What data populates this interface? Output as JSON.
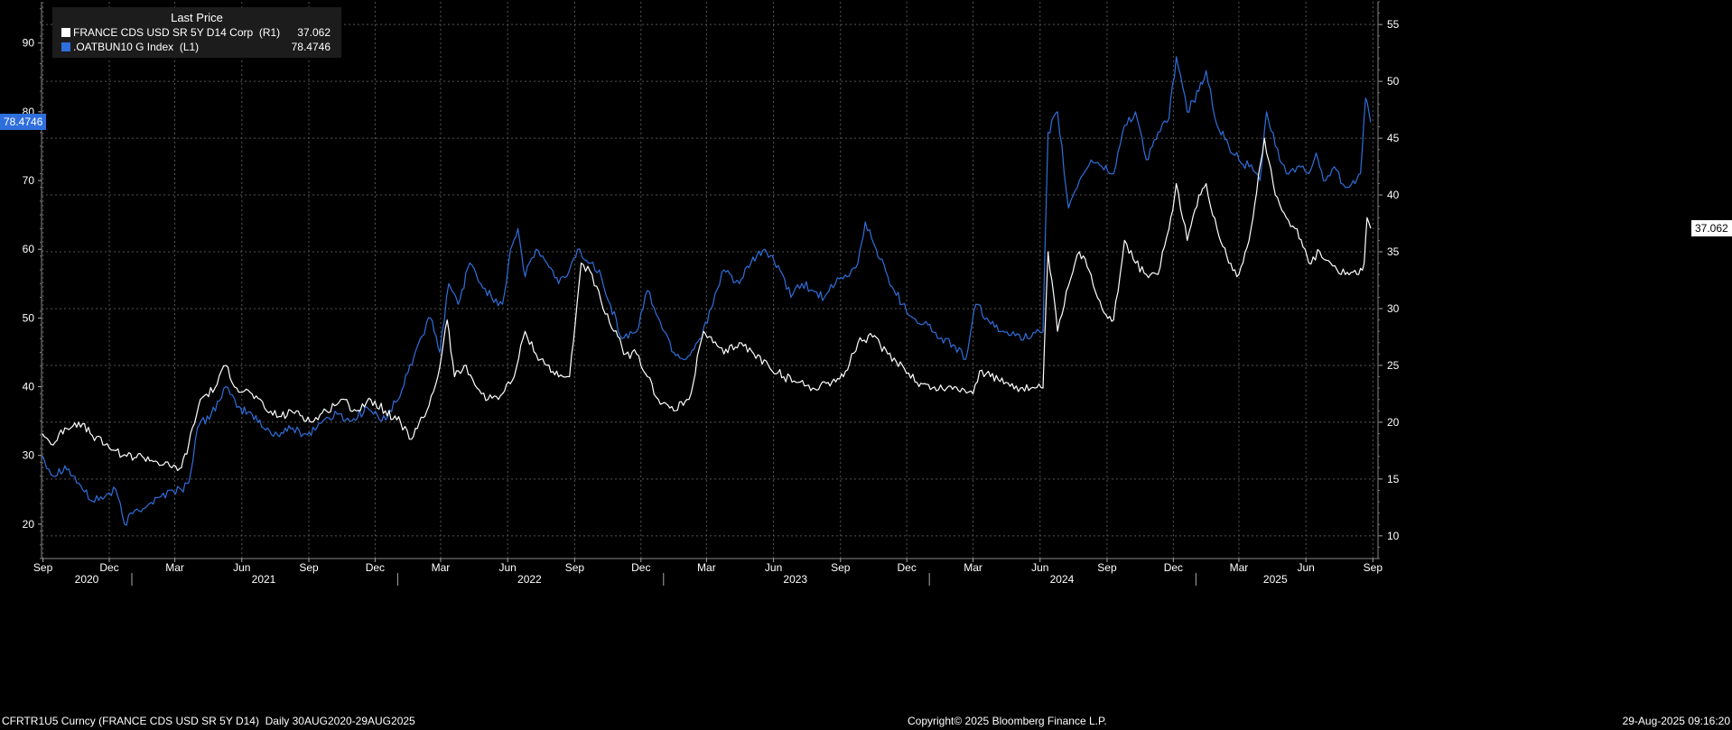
{
  "chart_data": {
    "type": "line",
    "legend": {
      "title": "Last Price",
      "placement": "top-left",
      "entries": [
        {
          "name": "FRANCE CDS USD SR 5Y D14 Corp  (R1)",
          "value": "37.062",
          "color": "#ffffff"
        },
        {
          "name": ".OATBUN10 G Index  (L1)",
          "value": "78.4746",
          "color": "#2f6fdd"
        }
      ]
    },
    "left_axis": {
      "min": 15,
      "max": 96,
      "ticks": [
        20,
        30,
        40,
        50,
        60,
        70,
        80,
        90
      ]
    },
    "right_axis": {
      "min": 8,
      "max": 57,
      "ticks": [
        10,
        15,
        20,
        25,
        30,
        35,
        40,
        45,
        50,
        55
      ]
    },
    "x_range": [
      "2020-08-30",
      "2025-09-08"
    ],
    "month_ticks": [
      {
        "label": "Sep",
        "date": "2020-09-01"
      },
      {
        "label": "Dec",
        "date": "2020-12-01"
      },
      {
        "label": "Mar",
        "date": "2021-03-01"
      },
      {
        "label": "Jun",
        "date": "2021-06-01"
      },
      {
        "label": "Sep",
        "date": "2021-09-01"
      },
      {
        "label": "Dec",
        "date": "2021-12-01"
      },
      {
        "label": "Mar",
        "date": "2022-03-01"
      },
      {
        "label": "Jun",
        "date": "2022-06-01"
      },
      {
        "label": "Sep",
        "date": "2022-09-01"
      },
      {
        "label": "Dec",
        "date": "2022-12-01"
      },
      {
        "label": "Mar",
        "date": "2023-03-01"
      },
      {
        "label": "Jun",
        "date": "2023-06-01"
      },
      {
        "label": "Sep",
        "date": "2023-09-01"
      },
      {
        "label": "Dec",
        "date": "2023-12-01"
      },
      {
        "label": "Mar",
        "date": "2024-03-01"
      },
      {
        "label": "Jun",
        "date": "2024-06-01"
      },
      {
        "label": "Sep",
        "date": "2024-09-01"
      },
      {
        "label": "Dec",
        "date": "2024-12-01"
      },
      {
        "label": "Mar",
        "date": "2025-03-01"
      },
      {
        "label": "Jun",
        "date": "2025-06-01"
      },
      {
        "label": "Sep",
        "date": "2025-09-01"
      }
    ],
    "year_labels": [
      {
        "label": "2020",
        "date": "2020-10-31"
      },
      {
        "label": "2021",
        "date": "2021-07-01"
      },
      {
        "label": "2022",
        "date": "2022-07-01"
      },
      {
        "label": "2023",
        "date": "2023-07-01"
      },
      {
        "label": "2024",
        "date": "2024-07-01"
      },
      {
        "label": "2025",
        "date": "2025-04-20"
      }
    ],
    "year_dividers": [
      "2021-01-01",
      "2022-01-01",
      "2023-01-01",
      "2024-01-01",
      "2025-01-01"
    ],
    "grid": true,
    "series": [
      {
        "name": ".OATBUN10 G Index  (L1)",
        "axis": "left",
        "color": "#2f6fdd",
        "last_value": "78.4746",
        "points": [
          [
            "2020-08-31",
            30
          ],
          [
            "2020-09-15",
            27
          ],
          [
            "2020-10-01",
            28.5
          ],
          [
            "2020-10-20",
            26
          ],
          [
            "2020-11-05",
            23.5
          ],
          [
            "2020-11-25",
            24
          ],
          [
            "2020-12-10",
            25
          ],
          [
            "2020-12-22",
            20
          ],
          [
            "2021-01-05",
            22
          ],
          [
            "2021-01-25",
            23
          ],
          [
            "2021-02-10",
            24
          ],
          [
            "2021-02-25",
            25
          ],
          [
            "2021-03-10",
            25
          ],
          [
            "2021-03-20",
            26
          ],
          [
            "2021-04-01",
            34
          ],
          [
            "2021-04-20",
            36
          ],
          [
            "2021-05-10",
            40
          ],
          [
            "2021-05-25",
            37
          ],
          [
            "2021-06-15",
            36
          ],
          [
            "2021-07-01",
            34
          ],
          [
            "2021-07-20",
            33
          ],
          [
            "2021-08-10",
            34
          ],
          [
            "2021-08-30",
            33
          ],
          [
            "2021-09-20",
            35
          ],
          [
            "2021-10-10",
            36
          ],
          [
            "2021-10-30",
            35
          ],
          [
            "2021-11-20",
            37
          ],
          [
            "2021-12-10",
            35
          ],
          [
            "2022-01-01",
            38
          ],
          [
            "2022-01-15",
            42
          ],
          [
            "2022-02-01",
            47
          ],
          [
            "2022-02-15",
            50
          ],
          [
            "2022-02-28",
            45
          ],
          [
            "2022-03-12",
            55
          ],
          [
            "2022-03-25",
            52
          ],
          [
            "2022-04-10",
            58
          ],
          [
            "2022-04-25",
            55
          ],
          [
            "2022-05-10",
            53
          ],
          [
            "2022-05-25",
            52
          ],
          [
            "2022-06-05",
            60
          ],
          [
            "2022-06-15",
            63
          ],
          [
            "2022-06-25",
            56
          ],
          [
            "2022-07-10",
            60
          ],
          [
            "2022-07-25",
            58
          ],
          [
            "2022-08-10",
            55
          ],
          [
            "2022-08-25",
            57
          ],
          [
            "2022-09-05",
            60
          ],
          [
            "2022-09-20",
            58
          ],
          [
            "2022-10-05",
            57
          ],
          [
            "2022-10-20",
            52
          ],
          [
            "2022-11-05",
            47
          ],
          [
            "2022-11-25",
            48
          ],
          [
            "2022-12-10",
            54
          ],
          [
            "2022-12-25",
            50
          ],
          [
            "2023-01-15",
            45
          ],
          [
            "2023-02-01",
            44
          ],
          [
            "2023-02-20",
            47
          ],
          [
            "2023-03-10",
            52
          ],
          [
            "2023-03-25",
            57
          ],
          [
            "2023-04-15",
            55
          ],
          [
            "2023-05-01",
            58
          ],
          [
            "2023-05-20",
            60
          ],
          [
            "2023-06-10",
            57
          ],
          [
            "2023-06-25",
            53
          ],
          [
            "2023-07-10",
            55
          ],
          [
            "2023-07-25",
            54
          ],
          [
            "2023-08-10",
            53
          ],
          [
            "2023-08-25",
            55
          ],
          [
            "2023-09-10",
            56
          ],
          [
            "2023-09-25",
            58
          ],
          [
            "2023-10-05",
            64
          ],
          [
            "2023-10-20",
            60
          ],
          [
            "2023-11-05",
            56
          ],
          [
            "2023-11-25",
            52
          ],
          [
            "2023-12-10",
            50
          ],
          [
            "2023-12-30",
            49
          ],
          [
            "2024-01-15",
            47
          ],
          [
            "2024-02-05",
            46
          ],
          [
            "2024-02-20",
            44
          ],
          [
            "2024-03-05",
            52
          ],
          [
            "2024-03-20",
            50
          ],
          [
            "2024-04-05",
            48
          ],
          [
            "2024-04-25",
            48
          ],
          [
            "2024-05-15",
            47
          ],
          [
            "2024-06-05",
            48
          ],
          [
            "2024-06-12",
            77
          ],
          [
            "2024-06-25",
            80
          ],
          [
            "2024-07-10",
            66
          ],
          [
            "2024-07-25",
            70
          ],
          [
            "2024-08-10",
            73
          ],
          [
            "2024-08-25",
            72
          ],
          [
            "2024-09-10",
            71
          ],
          [
            "2024-09-25",
            78
          ],
          [
            "2024-10-10",
            80
          ],
          [
            "2024-10-25",
            73
          ],
          [
            "2024-11-10",
            77
          ],
          [
            "2024-11-25",
            79
          ],
          [
            "2024-12-05",
            88
          ],
          [
            "2024-12-20",
            80
          ],
          [
            "2025-01-05",
            83
          ],
          [
            "2025-01-15",
            86
          ],
          [
            "2025-01-30",
            78
          ],
          [
            "2025-02-15",
            75
          ],
          [
            "2025-03-01",
            73
          ],
          [
            "2025-03-15",
            72
          ],
          [
            "2025-03-30",
            70
          ],
          [
            "2025-04-08",
            80
          ],
          [
            "2025-04-20",
            75
          ],
          [
            "2025-05-05",
            71
          ],
          [
            "2025-05-20",
            72
          ],
          [
            "2025-06-05",
            71
          ],
          [
            "2025-06-15",
            74
          ],
          [
            "2025-06-25",
            70
          ],
          [
            "2025-07-10",
            72
          ],
          [
            "2025-07-25",
            69
          ],
          [
            "2025-08-05",
            70
          ],
          [
            "2025-08-15",
            71
          ],
          [
            "2025-08-22",
            82
          ],
          [
            "2025-08-29",
            78.47
          ]
        ]
      },
      {
        "name": "FRANCE CDS USD SR 5Y D14 Corp  (R1)",
        "axis": "right",
        "color": "#ffffff",
        "last_value": "37.062",
        "points": [
          [
            "2020-08-31",
            19
          ],
          [
            "2020-09-15",
            18
          ],
          [
            "2020-10-01",
            19.5
          ],
          [
            "2020-10-20",
            20
          ],
          [
            "2020-11-05",
            19
          ],
          [
            "2020-11-25",
            18
          ],
          [
            "2020-12-10",
            17.5
          ],
          [
            "2020-12-25",
            17
          ],
          [
            "2021-01-15",
            17
          ],
          [
            "2021-02-05",
            16.5
          ],
          [
            "2021-02-25",
            16
          ],
          [
            "2021-03-10",
            16
          ],
          [
            "2021-03-20",
            18
          ],
          [
            "2021-04-05",
            22
          ],
          [
            "2021-04-25",
            23
          ],
          [
            "2021-05-10",
            25
          ],
          [
            "2021-05-25",
            23
          ],
          [
            "2021-06-15",
            22.5
          ],
          [
            "2021-07-05",
            21
          ],
          [
            "2021-07-25",
            20.5
          ],
          [
            "2021-08-15",
            21
          ],
          [
            "2021-09-05",
            20
          ],
          [
            "2021-09-25",
            21
          ],
          [
            "2021-10-15",
            22
          ],
          [
            "2021-11-05",
            21
          ],
          [
            "2021-11-25",
            22
          ],
          [
            "2021-12-15",
            21
          ],
          [
            "2022-01-05",
            20
          ],
          [
            "2022-01-20",
            18.5
          ],
          [
            "2022-02-10",
            21
          ],
          [
            "2022-02-25",
            24
          ],
          [
            "2022-03-10",
            29
          ],
          [
            "2022-03-20",
            24
          ],
          [
            "2022-04-05",
            25
          ],
          [
            "2022-04-20",
            23
          ],
          [
            "2022-05-05",
            22
          ],
          [
            "2022-05-25",
            22.5
          ],
          [
            "2022-06-10",
            24
          ],
          [
            "2022-06-25",
            28
          ],
          [
            "2022-07-10",
            26
          ],
          [
            "2022-07-25",
            25
          ],
          [
            "2022-08-10",
            24
          ],
          [
            "2022-08-25",
            24
          ],
          [
            "2022-09-10",
            34
          ],
          [
            "2022-09-25",
            33
          ],
          [
            "2022-10-10",
            30
          ],
          [
            "2022-10-25",
            28
          ],
          [
            "2022-11-10",
            26
          ],
          [
            "2022-11-25",
            26
          ],
          [
            "2022-12-10",
            24
          ],
          [
            "2022-12-25",
            22
          ],
          [
            "2023-01-15",
            21
          ],
          [
            "2023-02-05",
            22
          ],
          [
            "2023-02-25",
            28
          ],
          [
            "2023-03-10",
            27
          ],
          [
            "2023-03-25",
            26
          ],
          [
            "2023-04-15",
            27
          ],
          [
            "2023-05-05",
            26
          ],
          [
            "2023-05-25",
            25
          ],
          [
            "2023-06-15",
            24
          ],
          [
            "2023-07-05",
            23.5
          ],
          [
            "2023-07-25",
            23
          ],
          [
            "2023-08-15",
            23.5
          ],
          [
            "2023-09-05",
            24
          ],
          [
            "2023-09-25",
            27
          ],
          [
            "2023-10-15",
            27.5
          ],
          [
            "2023-11-05",
            26
          ],
          [
            "2023-11-25",
            25
          ],
          [
            "2023-12-15",
            23.5
          ],
          [
            "2024-01-05",
            23
          ],
          [
            "2024-01-25",
            23
          ],
          [
            "2024-02-15",
            23
          ],
          [
            "2024-03-01",
            22.5
          ],
          [
            "2024-03-10",
            24.5
          ],
          [
            "2024-03-25",
            24
          ],
          [
            "2024-04-15",
            23.5
          ],
          [
            "2024-05-05",
            23
          ],
          [
            "2024-05-25",
            23
          ],
          [
            "2024-06-05",
            23
          ],
          [
            "2024-06-12",
            35
          ],
          [
            "2024-06-25",
            28
          ],
          [
            "2024-07-10",
            32
          ],
          [
            "2024-07-25",
            35
          ],
          [
            "2024-08-10",
            33
          ],
          [
            "2024-08-25",
            30
          ],
          [
            "2024-09-10",
            29
          ],
          [
            "2024-09-25",
            36
          ],
          [
            "2024-10-10",
            34
          ],
          [
            "2024-10-25",
            33
          ],
          [
            "2024-11-10",
            33
          ],
          [
            "2024-11-25",
            37
          ],
          [
            "2024-12-05",
            41
          ],
          [
            "2024-12-20",
            36
          ],
          [
            "2025-01-05",
            40
          ],
          [
            "2025-01-15",
            41
          ],
          [
            "2025-01-30",
            37
          ],
          [
            "2025-02-15",
            34
          ],
          [
            "2025-03-01",
            33
          ],
          [
            "2025-03-15",
            36
          ],
          [
            "2025-04-05",
            45
          ],
          [
            "2025-04-20",
            40
          ],
          [
            "2025-05-05",
            38
          ],
          [
            "2025-05-20",
            37
          ],
          [
            "2025-06-05",
            34
          ],
          [
            "2025-06-20",
            35
          ],
          [
            "2025-07-05",
            34
          ],
          [
            "2025-07-25",
            33
          ],
          [
            "2025-08-10",
            33
          ],
          [
            "2025-08-20",
            34
          ],
          [
            "2025-08-24",
            38
          ],
          [
            "2025-08-29",
            37.06
          ]
        ]
      }
    ]
  },
  "footer": {
    "left": "CFRTR1U5 Curncy (FRANCE CDS USD SR 5Y D14)  Daily 30AUG2020-29AUG2025",
    "center": "Copyright© 2025 Bloomberg Finance L.P.",
    "right": "29-Aug-2025 09:16:20"
  },
  "colors": {
    "background": "#000000",
    "legend_bg": "#1c1c1c",
    "blue": "#2f6fdd",
    "white": "#ffffff"
  }
}
